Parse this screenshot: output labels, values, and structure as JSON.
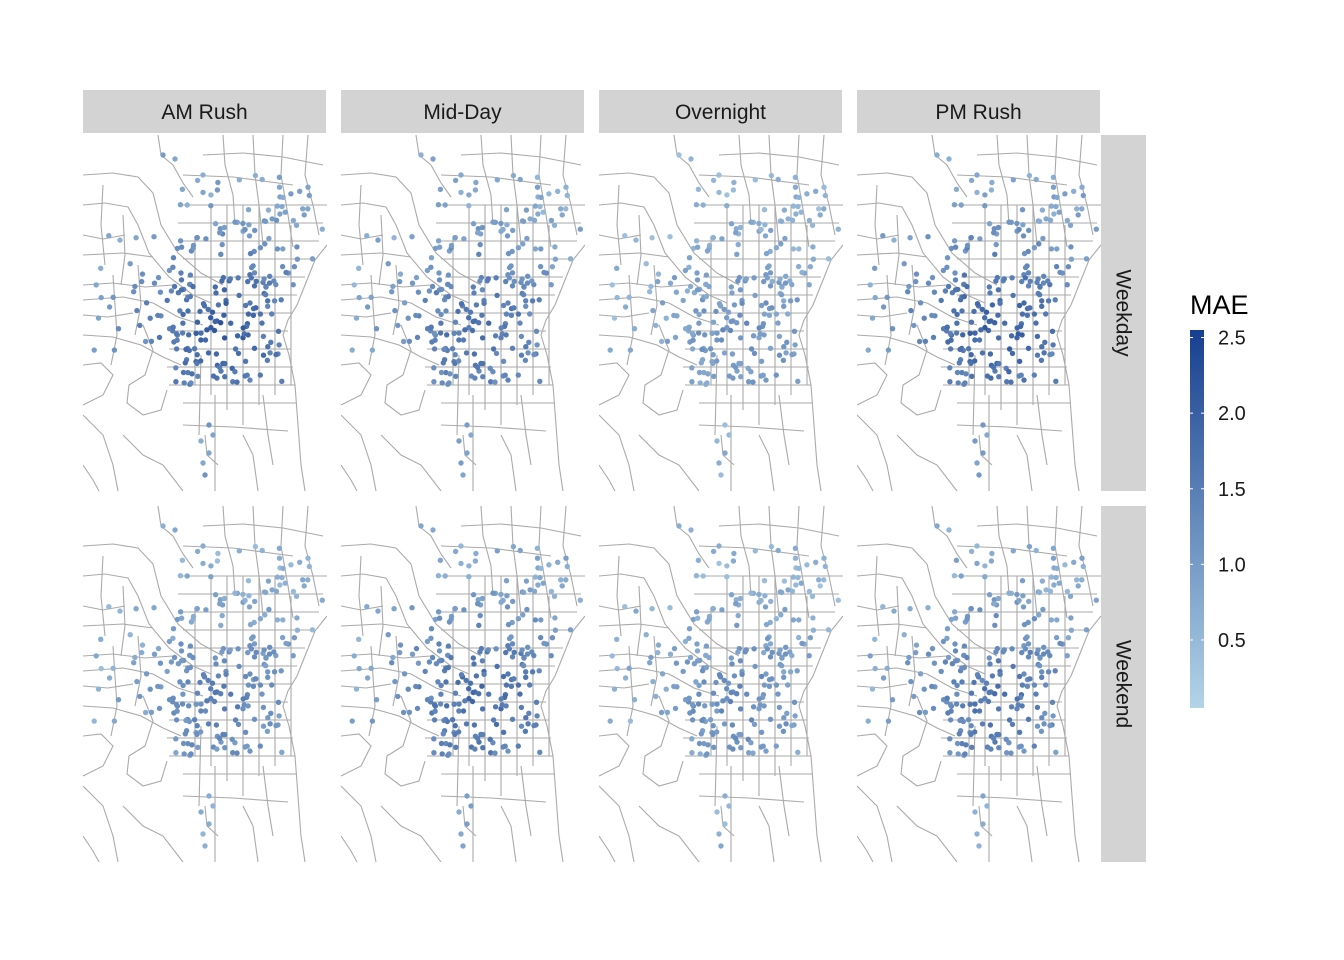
{
  "facets": {
    "columns": [
      "AM Rush",
      "Mid-Day",
      "Overnight",
      "PM Rush"
    ],
    "rows": [
      "Weekday",
      "Weekend"
    ]
  },
  "legend": {
    "title": "MAE",
    "ticks": [
      "0.5",
      "1.0",
      "1.5",
      "2.0",
      "2.5"
    ],
    "tick_values": [
      0.5,
      1.0,
      1.5,
      2.0,
      2.5
    ],
    "range": [
      0.05,
      2.55
    ],
    "color_low": "#b3d4e8",
    "color_high": "#173f8f"
  },
  "colors": {
    "strip_background": "#d3d3d3",
    "street_lines": "#aaaaaa"
  },
  "station_mean_mae": {
    "AM Rush|Weekday": 1.15,
    "Mid-Day|Weekday": 0.95,
    "Overnight|Weekday": 0.6,
    "PM Rush|Weekday": 1.15,
    "AM Rush|Weekend": 0.75,
    "Mid-Day|Weekend": 1.0,
    "Overnight|Weekend": 0.65,
    "PM Rush|Weekend": 0.9
  }
}
